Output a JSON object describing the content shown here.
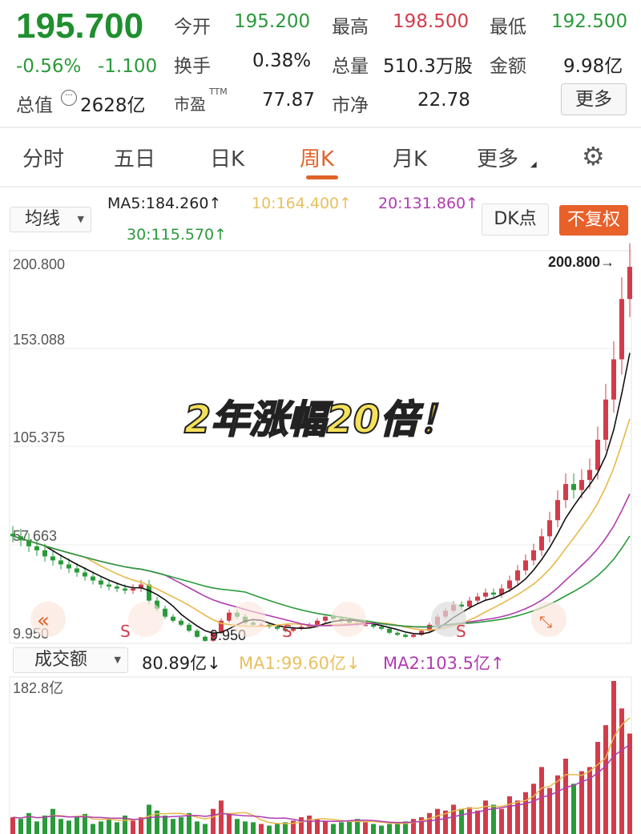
{
  "quote": {
    "price": "195.700",
    "change_pct": "-0.56%",
    "change": "-1.100",
    "open_label": "今开",
    "open": "195.200",
    "high_label": "最高",
    "high": "198.500",
    "low_label": "最低",
    "low": "192.500",
    "turnover_label": "换手",
    "turnover": "0.38%",
    "volume_label": "总量",
    "volume": "510.3万股",
    "amount_label": "金额",
    "amount": "9.98亿",
    "mktcap_label": "总值",
    "mktcap": "2628亿",
    "pe_label": "市盈",
    "pe_sup": "TTM",
    "pe": "77.87",
    "pb_label": "市净",
    "pb": "22.78",
    "more_label": "更多"
  },
  "tabs": [
    {
      "label": "分时"
    },
    {
      "label": "五日"
    },
    {
      "label": "日K"
    },
    {
      "label": "周K",
      "active": true
    },
    {
      "label": "月K"
    },
    {
      "label": "更多"
    }
  ],
  "indicator": {
    "select": "均线",
    "ma5": "MA5:184.260↑",
    "ma10": "10:164.400↑",
    "ma20": "20:131.860↑",
    "ma30": "30:115.570↑",
    "dk": "DK点",
    "adjust": "不复权"
  },
  "colors": {
    "up": "#d23c4a",
    "down": "#2a9a3a",
    "ma5": "#111111",
    "ma10": "#e8b84a",
    "ma20": "#b03cb0",
    "ma30": "#2a9a3a",
    "accent": "#e0642a"
  },
  "overlay_text": "2年涨幅20倍！",
  "volume_bar": {
    "select": "成交额",
    "value": "80.89亿↓",
    "ma1": "MA1:99.60亿↓",
    "ma2": "MA2:103.5亿↑"
  },
  "chart_data": {
    "type": "candlestick",
    "period": "weekly",
    "y_ticks": [
      "200.800",
      "153.088",
      "105.375",
      "57.663",
      "9.950"
    ],
    "ylim": [
      9.95,
      200.8
    ],
    "max_label": "200.800→",
    "min_label": "9.950",
    "closes": [
      62,
      60,
      57,
      55,
      52,
      50,
      48,
      46,
      44,
      42,
      40,
      38,
      37,
      36,
      35,
      36,
      38,
      30,
      26,
      22,
      20,
      18,
      15,
      12,
      10,
      14,
      20,
      24,
      22,
      19,
      18,
      18,
      17,
      16,
      15,
      16,
      17,
      18,
      20,
      22,
      21,
      20,
      19,
      18,
      18,
      17,
      16,
      14,
      13,
      12,
      13,
      15,
      18,
      22,
      25,
      28,
      27,
      30,
      32,
      34,
      33,
      36,
      40,
      45,
      50,
      55,
      62,
      70,
      80,
      88,
      85,
      90,
      95,
      110,
      130,
      150,
      180,
      196
    ],
    "volume_max_label": "182.8亿",
    "volume_ylim": [
      0,
      182.8
    ],
    "volumes": [
      20,
      18,
      25,
      15,
      22,
      30,
      18,
      16,
      20,
      24,
      12,
      15,
      18,
      14,
      22,
      16,
      20,
      35,
      28,
      22,
      18,
      20,
      25,
      15,
      12,
      30,
      40,
      25,
      18,
      15,
      14,
      12,
      10,
      12,
      14,
      16,
      20,
      22,
      18,
      15,
      12,
      14,
      16,
      18,
      14,
      12,
      10,
      12,
      14,
      15,
      18,
      20,
      25,
      30,
      28,
      35,
      30,
      32,
      28,
      40,
      35,
      30,
      45,
      40,
      50,
      60,
      80,
      55,
      70,
      90,
      60,
      75,
      80,
      110,
      130,
      182.8,
      150,
      120
    ]
  }
}
